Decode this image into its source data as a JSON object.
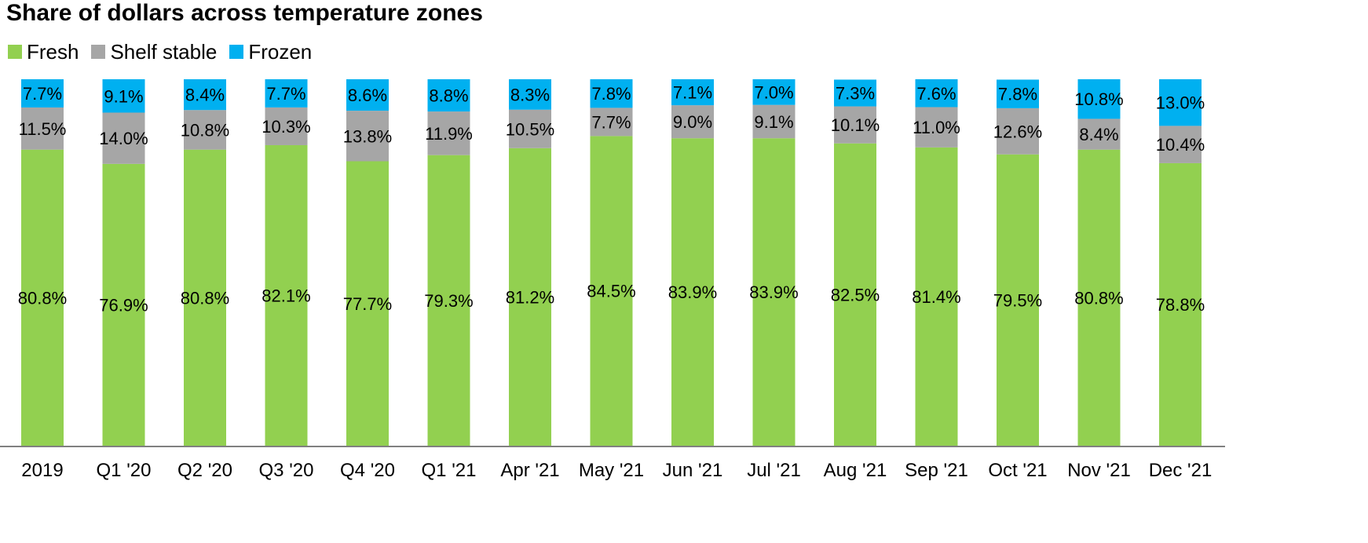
{
  "chart_data": {
    "type": "bar",
    "stacked": true,
    "title": "Share of dollars across temperature zones",
    "xlabel": "",
    "ylabel": "",
    "ylim": [
      0,
      100
    ],
    "legend_position": "top-left",
    "grid": false,
    "categories": [
      "2019",
      "Q1 '20",
      "Q2 '20",
      "Q3 '20",
      "Q4 '20",
      "Q1 '21",
      "Apr '21",
      "May '21",
      "Jun '21",
      "Jul '21",
      "Aug '21",
      "Sep '21",
      "Oct '21",
      "Nov '21",
      "Dec '21"
    ],
    "series": [
      {
        "name": "Fresh",
        "color": "#92D050",
        "values": [
          80.8,
          76.9,
          80.8,
          82.1,
          77.7,
          79.3,
          81.2,
          84.5,
          83.9,
          83.9,
          82.5,
          81.4,
          79.5,
          80.8,
          78.8
        ],
        "labels": [
          "80.8%",
          "76.9%",
          "80.8%",
          "82.1%",
          "77.7%",
          "79.3%",
          "81.2%",
          "84.5%",
          "83.9%",
          "83.9%",
          "82.5%",
          "81.4%",
          "79.5%",
          "80.8%",
          "78.8%"
        ]
      },
      {
        "name": "Shelf stable",
        "color": "#A6A6A6",
        "values": [
          11.5,
          14.0,
          10.8,
          10.3,
          13.8,
          11.9,
          10.5,
          7.7,
          9.0,
          9.1,
          10.1,
          11.0,
          12.6,
          8.4,
          10.4
        ],
        "labels": [
          "11.5%",
          "14.0%",
          "10.8%",
          "10.3%",
          "13.8%",
          "11.9%",
          "10.5%",
          "7.7%",
          "9.0%",
          "9.1%",
          "10.1%",
          "11.0%",
          "12.6%",
          "8.4%",
          "10.4%"
        ]
      },
      {
        "name": "Frozen",
        "color": "#00B0F0",
        "values": [
          7.7,
          9.1,
          8.4,
          7.7,
          8.6,
          8.8,
          8.3,
          7.8,
          7.1,
          7.0,
          7.3,
          7.6,
          7.8,
          10.8,
          13.0
        ],
        "labels": [
          "7.7%",
          "9.1%",
          "8.4%",
          "7.7%",
          "8.6%",
          "8.8%",
          "8.3%",
          "7.8%",
          "7.1%",
          "7.0%",
          "7.3%",
          "7.6%",
          "7.8%",
          "10.8%",
          "13.0%"
        ]
      }
    ]
  }
}
